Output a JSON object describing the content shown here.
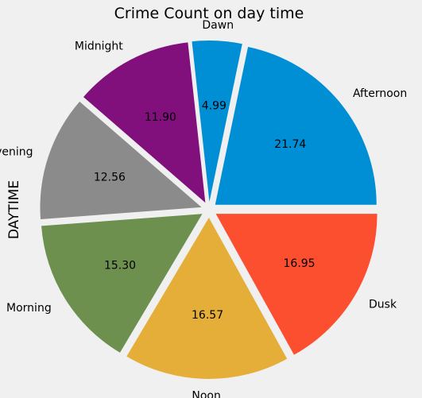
{
  "chart_data": {
    "type": "pie",
    "title": "Crime Count on day time",
    "ylabel": "DAYTIME",
    "xlabel": "",
    "categories": [
      "Afternoon",
      "Dawn",
      "Midnight",
      "Evening",
      "Morning",
      "Noon",
      "Dusk"
    ],
    "values": [
      21.74,
      4.99,
      11.9,
      12.56,
      15.3,
      16.57,
      16.95
    ],
    "value_labels": [
      "21.74",
      "4.99",
      "11.90",
      "12.56",
      "15.30",
      "16.57",
      "16.95"
    ],
    "colors": [
      "#008fd5",
      "#fc4f30",
      "#e5ae38",
      "#6d904f",
      "#8b8b8b",
      "#810f7c",
      "#fc4f30"
    ],
    "slice_colors": {
      "Afternoon": "#008fd5",
      "Dawn": "#008fd5",
      "Midnight": "#810f7c",
      "Evening": "#8b8b8b",
      "Morning": "#6d904f",
      "Noon": "#e5ae38",
      "Dusk": "#fc4f30"
    },
    "start_angle_deg": 0,
    "direction": "counterclockwise",
    "exploded": true,
    "background": "#f0f0f0"
  }
}
